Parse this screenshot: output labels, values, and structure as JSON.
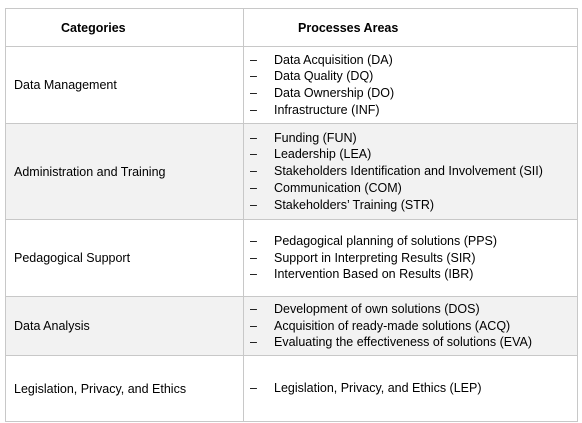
{
  "headers": {
    "categories": "Categories",
    "processes": "Processes Areas"
  },
  "rows": [
    {
      "category": "Data Management",
      "processes": [
        "Data Acquisition (DA)",
        "Data Quality (DQ)",
        "Data Ownership (DO)",
        "Infrastructure (INF)"
      ]
    },
    {
      "category": "Administration and Training",
      "processes": [
        "Funding (FUN)",
        "Leadership (LEA)",
        "Stakeholders Identification and Involvement (SII)",
        "Communication (COM)",
        "Stakeholders’ Training (STR)"
      ]
    },
    {
      "category": "Pedagogical Support",
      "processes": [
        "Pedagogical planning of solutions (PPS)",
        "Support in Interpreting Results (SIR)",
        "Intervention Based on Results (IBR)"
      ]
    },
    {
      "category": "Data Analysis",
      "processes": [
        "Development of own solutions (DOS)",
        "Acquisition of ready-made solutions (ACQ)",
        "Evaluating the effectiveness of solutions (EVA)"
      ]
    },
    {
      "category": "Legislation, Privacy, and Ethics",
      "processes": [
        "Legislation, Privacy, and Ethics (LEP)"
      ]
    }
  ],
  "bullet": "–"
}
